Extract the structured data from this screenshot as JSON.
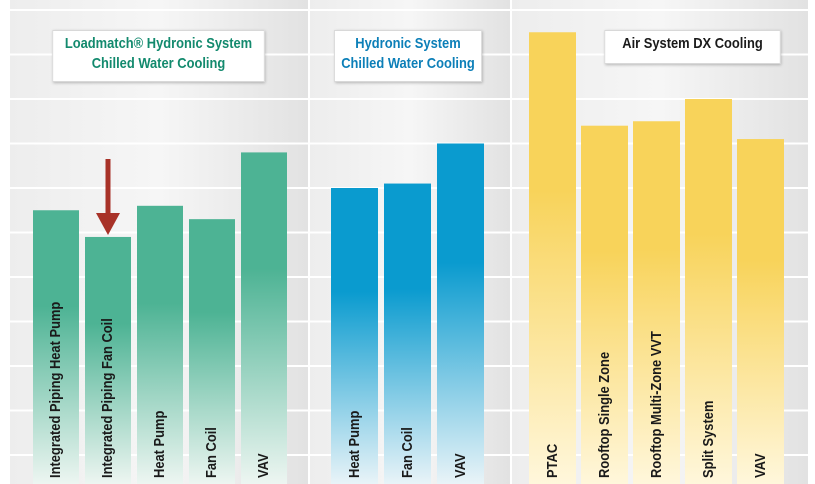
{
  "chart_data": {
    "type": "bar",
    "ylim": [
      0,
      10
    ],
    "grid": true,
    "groups": [
      {
        "title_line1": "Loadmatch® Hydronic System",
        "title_line2": "Chilled Water Cooling",
        "title_color": "#138a6e",
        "bar_color_top": "#4db394",
        "bar_color_bottom": "#eef6f2",
        "label_color": "#1a1a1a",
        "categories": [
          "Integrated Piping Heat Pump",
          "Integrated Piping Fan Coil",
          "Heat Pump",
          "Fan Coil",
          "VAV"
        ],
        "values": [
          5.5,
          4.9,
          5.6,
          5.3,
          6.8
        ]
      },
      {
        "title_line1": "Hydronic System",
        "title_line2": "Chilled Water Cooling",
        "title_color": "#0c7fb8",
        "bar_color_top": "#0a9bcf",
        "bar_color_bottom": "#eaf4f8",
        "label_color": "#1a1a1a",
        "categories": [
          "Heat Pump",
          "Fan Coil",
          "VAV"
        ],
        "values": [
          6.0,
          6.1,
          7.0
        ]
      },
      {
        "title_line1": "Air System DX Cooling",
        "title_line2": "",
        "title_color": "#1a1a1a",
        "bar_color_top": "#f8d35a",
        "bar_color_bottom": "#fff7dc",
        "label_color": "#1a1a1a",
        "categories": [
          "PTAC",
          "Rooftop Single Zone",
          "Rooftop Multi-Zone VVT",
          "Split System",
          "VAV"
        ],
        "values": [
          9.5,
          7.4,
          7.5,
          8.0,
          7.1
        ]
      }
    ],
    "arrow_color": "#a83228"
  }
}
